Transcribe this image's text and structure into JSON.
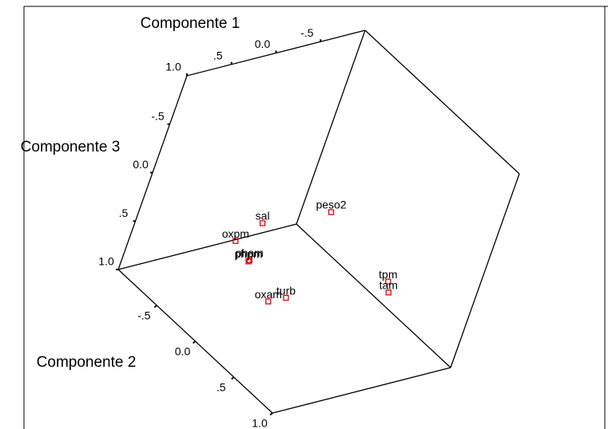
{
  "chart_data": {
    "type": "scatter3d",
    "x_label": "Componente 1",
    "y_label": "Componente 2",
    "z_label": "Componente 3",
    "xlim": [
      -1,
      1
    ],
    "ylim": [
      -1,
      1
    ],
    "zlim": [
      -1,
      1
    ],
    "xticks": [
      {
        "value": 1,
        "label": "1.0"
      },
      {
        "value": 0.5,
        "label": ".5"
      },
      {
        "value": 0,
        "label": "0.0"
      },
      {
        "value": -0.5,
        "label": "-.5"
      }
    ],
    "yticks": [
      {
        "value": -0.5,
        "label": "-.5"
      },
      {
        "value": 0,
        "label": "0.0"
      },
      {
        "value": 0.5,
        "label": ".5"
      },
      {
        "value": 1,
        "label": "1.0"
      }
    ],
    "zticks": [
      {
        "value": -0.5,
        "label": "-.5"
      },
      {
        "value": 0,
        "label": "0.0"
      },
      {
        "value": 0.5,
        "label": ".5"
      },
      {
        "value": 1,
        "label": "1.0"
      }
    ],
    "color": "#e00000",
    "points": [
      {
        "name": "sal",
        "x": 0.51,
        "y": -0.14,
        "z": 0
      },
      {
        "name": "peso2",
        "x": -0.2,
        "y": -0.07,
        "z": 0
      },
      {
        "name": "oxpm",
        "x": 0.55,
        "y": -0.31,
        "z": 0.3
      },
      {
        "name": "phpm",
        "x": 0.63,
        "y": -0.05,
        "z": 0.3
      },
      {
        "name": "pham",
        "x": 0.61,
        "y": -0.06,
        "z": 0.3
      },
      {
        "name": "oxam",
        "x": 0.59,
        "y": 0.25,
        "z": 0.5
      },
      {
        "name": "turb",
        "x": 0.4,
        "y": 0.26,
        "z": 0.5
      },
      {
        "name": "tpm",
        "x": -0.41,
        "y": 0.56,
        "z": 0.3
      },
      {
        "name": "tam",
        "x": -0.31,
        "y": 0.68,
        "z": 0.3
      }
    ]
  }
}
